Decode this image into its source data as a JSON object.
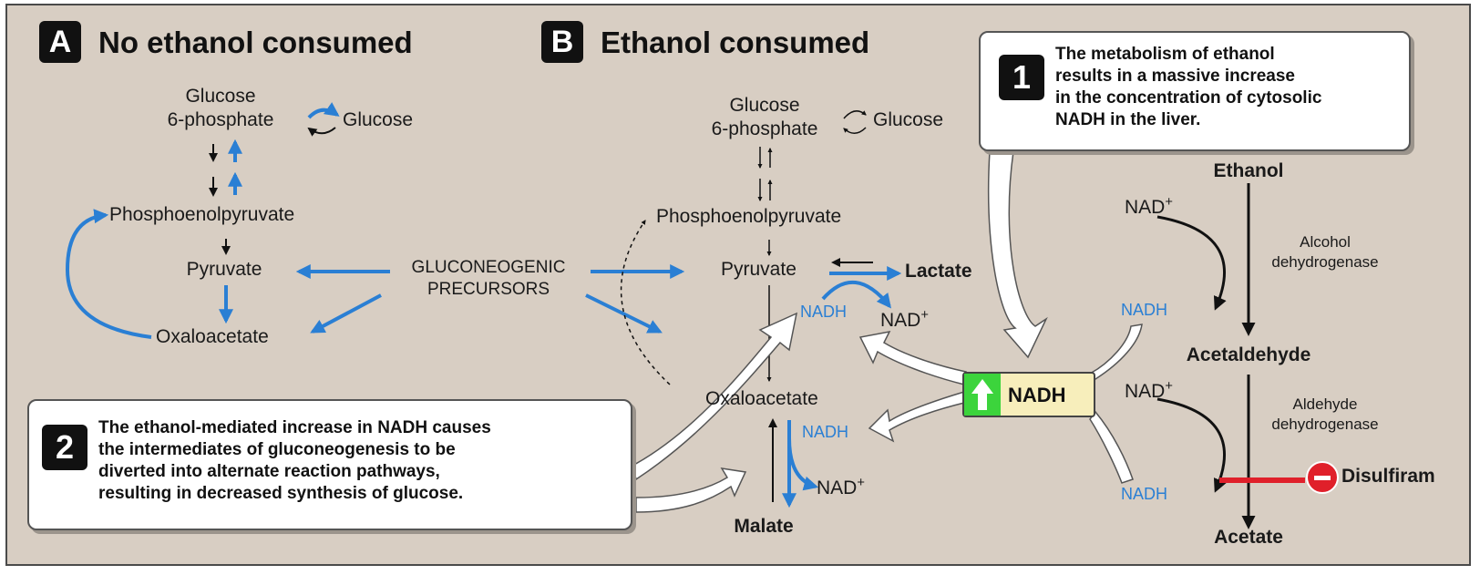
{
  "panel_a": {
    "badge": "A",
    "title": "No ethanol consumed",
    "glucose_6_phosphate_line1": "Glucose",
    "glucose_6_phosphate_line2": "6-phosphate",
    "glucose": "Glucose",
    "phosphoenolpyruvate": "Phosphoenolpyruvate",
    "pyruvate": "Pyruvate",
    "oxaloacetate": "Oxaloacetate"
  },
  "precursors": {
    "line1": "GLUCONEOGENIC",
    "line2": "PRECURSORS"
  },
  "panel_b": {
    "badge": "B",
    "title": "Ethanol consumed",
    "glucose_6_phosphate_line1": "Glucose",
    "glucose_6_phosphate_line2": "6-phosphate",
    "glucose": "Glucose",
    "phosphoenolpyruvate": "Phosphoenolpyruvate",
    "pyruvate": "Pyruvate",
    "lactate": "Lactate",
    "nadh_pyruvate": "NADH",
    "nad_pyruvate": "NAD",
    "nad_pyruvate_sup": "+",
    "oxaloacetate": "Oxaloacetate",
    "nadh_oxaloacetate": "NADH",
    "nad_oxaloacetate": "NAD",
    "nad_oxaloacetate_sup": "+",
    "malate": "Malate"
  },
  "central_nadh": {
    "label": "NADH",
    "indicator_color": "#3cd43c"
  },
  "ethanol_pathway": {
    "ethanol": "Ethanol",
    "nad_1": "NAD",
    "nad_1_sup": "+",
    "enzyme_1_line1": "Alcohol",
    "enzyme_1_line2": "dehydrogenase",
    "nadh_1": "NADH",
    "acetaldehyde": "Acetaldehyde",
    "nad_2": "NAD",
    "nad_2_sup": "+",
    "enzyme_2_line1": "Aldehyde",
    "enzyme_2_line2": "dehydrogenase",
    "nadh_2": "NADH",
    "inhibitor": "Disulfiram",
    "acetate": "Acetate"
  },
  "callout_1": {
    "badge": "1",
    "line1": "The metabolism of ethanol",
    "line2": "results in a massive increase",
    "line3": "in the concentration of cytosolic",
    "line4": "NADH in the liver."
  },
  "callout_2": {
    "badge": "2",
    "line1": "The ethanol-mediated increase in NADH causes",
    "line2": "the intermediates of gluconeogenesis to be",
    "line3": "diverted into alternate reaction pathways,",
    "line4": "resulting in decreased synthesis of glucose."
  },
  "colors": {
    "background": "#d8cec3",
    "pathway_blue": "#2a7fd4",
    "nadh_box_fill": "#f7eebb",
    "inhibitor_red": "#e0202a"
  }
}
